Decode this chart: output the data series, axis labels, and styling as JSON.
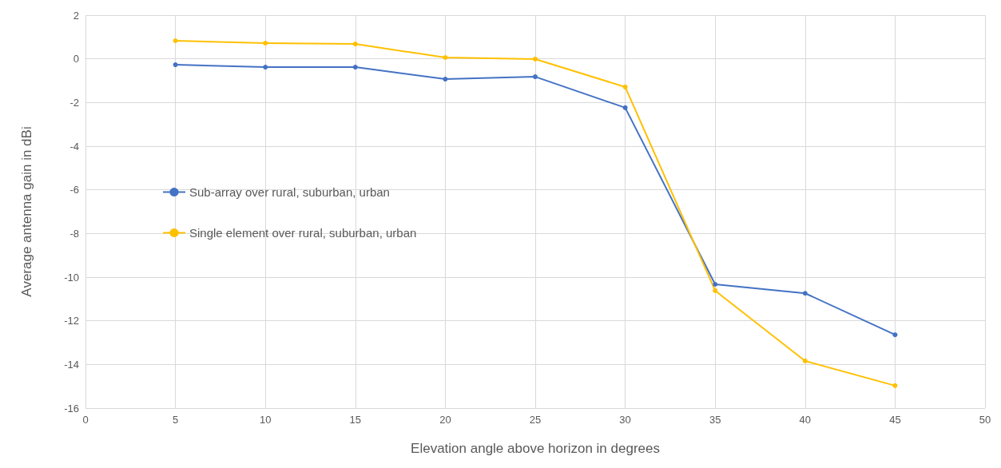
{
  "chart_data": {
    "type": "line",
    "xlabel": "Elevation angle above horizon in degrees",
    "ylabel": "Average antenna gain in dBi",
    "x": [
      5,
      10,
      15,
      20,
      25,
      30,
      35,
      40,
      45
    ],
    "series": [
      {
        "name": "Sub-array over rural, suburban, urban",
        "color": "#4472c4",
        "values": [
          -0.27,
          -0.38,
          -0.38,
          -0.93,
          -0.82,
          -2.24,
          -10.33,
          -10.74,
          -12.64
        ]
      },
      {
        "name": "Single element over rural, suburban, urban",
        "color": "#ffc000",
        "values": [
          0.83,
          0.72,
          0.68,
          0.06,
          -0.01,
          -1.29,
          -10.62,
          -13.84,
          -14.97
        ]
      }
    ],
    "xlim": [
      0,
      50
    ],
    "xticks": [
      0,
      5,
      10,
      15,
      20,
      25,
      30,
      35,
      40,
      45,
      50
    ],
    "ylim": [
      -16,
      2
    ],
    "yticks": [
      -16,
      -14,
      -12,
      -10,
      -8,
      -6,
      -4,
      -2,
      0,
      2
    ],
    "grid": true,
    "legend": "left",
    "marker": "circle",
    "line_style": "solid"
  }
}
